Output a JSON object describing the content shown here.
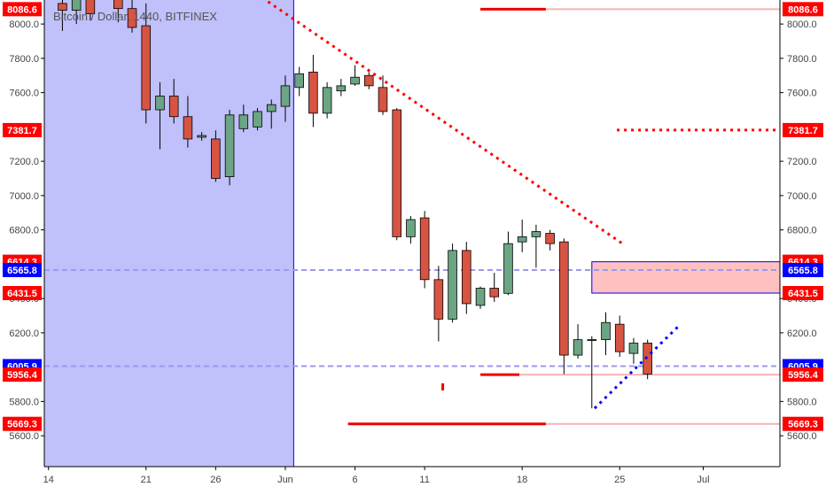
{
  "chart_data": {
    "type": "candlestick",
    "title": "Bitcoin / Dollar, 1440, BITFINEX",
    "x_tick_labels": [
      {
        "day": 0,
        "label": "14"
      },
      {
        "day": 7,
        "label": "21"
      },
      {
        "day": 12,
        "label": "26"
      },
      {
        "day": 17,
        "label": "Jun"
      },
      {
        "day": 22,
        "label": "6"
      },
      {
        "day": 27,
        "label": "11"
      },
      {
        "day": 34,
        "label": "18"
      },
      {
        "day": 41,
        "label": "25"
      },
      {
        "day": 47,
        "label": "Jul"
      }
    ],
    "y_ticks": [
      5600,
      5800,
      6200,
      6400,
      6800,
      7000,
      7200,
      7600,
      7800,
      8000
    ],
    "ylim": [
      5420,
      8140
    ],
    "xlim": [
      -0.3,
      52.5
    ],
    "y_tick_format_decimals": 1,
    "candles": [
      {
        "d": 1,
        "o": 8120,
        "h": 8190,
        "l": 7960,
        "c": 8080
      },
      {
        "d": 2,
        "o": 8080,
        "h": 8200,
        "l": 8000,
        "c": 8150
      },
      {
        "d": 3,
        "o": 8150,
        "h": 8190,
        "l": 8020,
        "c": 8060
      },
      {
        "d": 5,
        "o": 8160,
        "h": 8260,
        "l": 8010,
        "c": 8090
      },
      {
        "d": 6,
        "o": 8090,
        "h": 8150,
        "l": 7950,
        "c": 7980
      },
      {
        "d": 7,
        "o": 7990,
        "h": 8120,
        "l": 7420,
        "c": 7500
      },
      {
        "d": 8,
        "o": 7500,
        "h": 7660,
        "l": 7270,
        "c": 7580
      },
      {
        "d": 9,
        "o": 7580,
        "h": 7680,
        "l": 7420,
        "c": 7460
      },
      {
        "d": 10,
        "o": 7460,
        "h": 7580,
        "l": 7280,
        "c": 7330
      },
      {
        "d": 11,
        "o": 7340,
        "h": 7370,
        "l": 7320,
        "c": 7350
      },
      {
        "d": 12,
        "o": 7330,
        "h": 7380,
        "l": 7080,
        "c": 7100
      },
      {
        "d": 13,
        "o": 7110,
        "h": 7500,
        "l": 7060,
        "c": 7470
      },
      {
        "d": 14,
        "o": 7390,
        "h": 7530,
        "l": 7370,
        "c": 7470
      },
      {
        "d": 15,
        "o": 7400,
        "h": 7510,
        "l": 7380,
        "c": 7490
      },
      {
        "d": 16,
        "o": 7490,
        "h": 7560,
        "l": 7390,
        "c": 7530
      },
      {
        "d": 17,
        "o": 7520,
        "h": 7700,
        "l": 7430,
        "c": 7640
      },
      {
        "d": 18,
        "o": 7630,
        "h": 7750,
        "l": 7580,
        "c": 7710
      },
      {
        "d": 19,
        "o": 7720,
        "h": 7820,
        "l": 7400,
        "c": 7480
      },
      {
        "d": 20,
        "o": 7480,
        "h": 7660,
        "l": 7450,
        "c": 7630
      },
      {
        "d": 21,
        "o": 7610,
        "h": 7680,
        "l": 7580,
        "c": 7640
      },
      {
        "d": 22,
        "o": 7650,
        "h": 7760,
        "l": 7640,
        "c": 7690
      },
      {
        "d": 23,
        "o": 7700,
        "h": 7720,
        "l": 7620,
        "c": 7640
      },
      {
        "d": 24,
        "o": 7630,
        "h": 7700,
        "l": 7470,
        "c": 7490
      },
      {
        "d": 25,
        "o": 7500,
        "h": 7510,
        "l": 6740,
        "c": 6760
      },
      {
        "d": 26,
        "o": 6760,
        "h": 6880,
        "l": 6720,
        "c": 6860
      },
      {
        "d": 27,
        "o": 6870,
        "h": 6910,
        "l": 6460,
        "c": 6510
      },
      {
        "d": 28,
        "o": 6510,
        "h": 6590,
        "l": 6150,
        "c": 6280
      },
      {
        "d": 29,
        "o": 6280,
        "h": 6720,
        "l": 6260,
        "c": 6680
      },
      {
        "d": 30,
        "o": 6680,
        "h": 6730,
        "l": 6310,
        "c": 6370
      },
      {
        "d": 31,
        "o": 6360,
        "h": 6470,
        "l": 6340,
        "c": 6460
      },
      {
        "d": 32,
        "o": 6460,
        "h": 6550,
        "l": 6380,
        "c": 6410
      },
      {
        "d": 33,
        "o": 6430,
        "h": 6790,
        "l": 6420,
        "c": 6720
      },
      {
        "d": 34,
        "o": 6730,
        "h": 6860,
        "l": 6670,
        "c": 6760
      },
      {
        "d": 35,
        "o": 6760,
        "h": 6830,
        "l": 6580,
        "c": 6790
      },
      {
        "d": 36,
        "o": 6780,
        "h": 6800,
        "l": 6680,
        "c": 6720
      },
      {
        "d": 37,
        "o": 6730,
        "h": 6750,
        "l": 5960,
        "c": 6070
      },
      {
        "d": 38,
        "o": 6070,
        "h": 6250,
        "l": 6050,
        "c": 6160
      },
      {
        "d": 39,
        "o": 6160,
        "h": 6180,
        "l": 5760,
        "c": 6160
      },
      {
        "d": 40,
        "o": 6160,
        "h": 6320,
        "l": 6070,
        "c": 6260
      },
      {
        "d": 41,
        "o": 6250,
        "h": 6300,
        "l": 6060,
        "c": 6090
      },
      {
        "d": 42,
        "o": 6080,
        "h": 6170,
        "l": 6020,
        "c": 6140
      },
      {
        "d": 43,
        "o": 6140,
        "h": 6160,
        "l": 5930,
        "c": 5960
      }
    ],
    "price_tags": [
      {
        "value": 8086.6,
        "text": "8086.6",
        "color": "#ff0000"
      },
      {
        "value": 7381.7,
        "text": "7381.7",
        "color": "#ff0000"
      },
      {
        "value": 6614.3,
        "text": "6614.3",
        "color": "#ff0000"
      },
      {
        "value": 6565.8,
        "text": "6565.8",
        "color": "#0000ff"
      },
      {
        "value": 6431.5,
        "text": "6431.5",
        "color": "#ff0000"
      },
      {
        "value": 6005.9,
        "text": "6005.9",
        "color": "#0000ff"
      },
      {
        "value": 5956.4,
        "text": "5956.4",
        "color": "#ff0000"
      },
      {
        "value": 5669.3,
        "text": "5669.3",
        "color": "#ff0000"
      }
    ],
    "shaded_region": {
      "x0": -0.3,
      "x1": 17.6,
      "color": "#c0c0fa"
    },
    "vertical_line": {
      "x": 17.6,
      "color": "#0000ff"
    },
    "zone_box": {
      "x0": 39,
      "x1": 52.5,
      "y_top": 6614.3,
      "y_bottom": 6431.5,
      "fill": "#ffc0c0",
      "stroke": "#0000ff"
    },
    "horizontal_dashed": [
      {
        "value": 6565.8,
        "color": "#9a9af0"
      },
      {
        "value": 6005.9,
        "color": "#9a9af0"
      }
    ],
    "level_lines": [
      {
        "value": 8086.6,
        "x0": 31,
        "x1": 52.5,
        "solid_until": 35.7
      },
      {
        "value": 5956.4,
        "x0": 31,
        "x1": 52.5,
        "solid_until": 33.8
      },
      {
        "value": 5669.3,
        "x0": 21.5,
        "x1": 52.5,
        "solid_until": 35.7
      }
    ],
    "dotted_lines": [
      {
        "x0": 14.5,
        "y0": 8200,
        "x1": 41.2,
        "y1": 6720,
        "color": "#ff0000"
      },
      {
        "x0": 40.8,
        "y0": 7381.7,
        "x1": 52.5,
        "y1": 7381.7,
        "color": "#ff0000"
      },
      {
        "x0": 39.2,
        "y0": 5760,
        "x1": 45.3,
        "y1": 6245,
        "color": "#0000ff"
      }
    ],
    "red_dot": {
      "x": 28.3,
      "y": 5885
    },
    "colors": {
      "up_fill": "#6ba583",
      "down_fill": "#d75442",
      "edge": "#000000",
      "axis": "#000000"
    }
  }
}
